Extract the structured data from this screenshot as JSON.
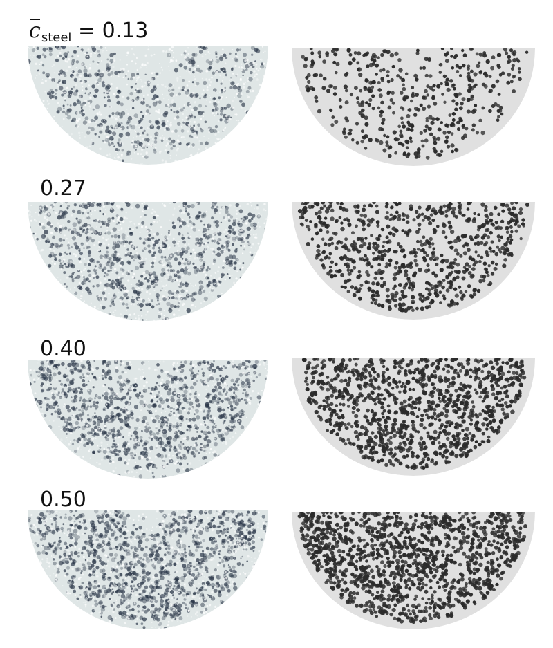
{
  "rows": [
    {
      "label_symbol": "c",
      "label_subscript": "steel",
      "label_eq": " = ",
      "label_value": "0.13",
      "concentration": 0.13
    },
    {
      "label_value": "0.27",
      "concentration": 0.27
    },
    {
      "label_value": "0.40",
      "concentration": 0.4
    },
    {
      "label_value": "0.50",
      "concentration": 0.5
    }
  ],
  "colors": {
    "experiment_glass": "#dfe6e6",
    "experiment_steel": "#2a3648",
    "simulation_background": "#e0e0e0",
    "simulation_particle": "#2b2b2b"
  }
}
